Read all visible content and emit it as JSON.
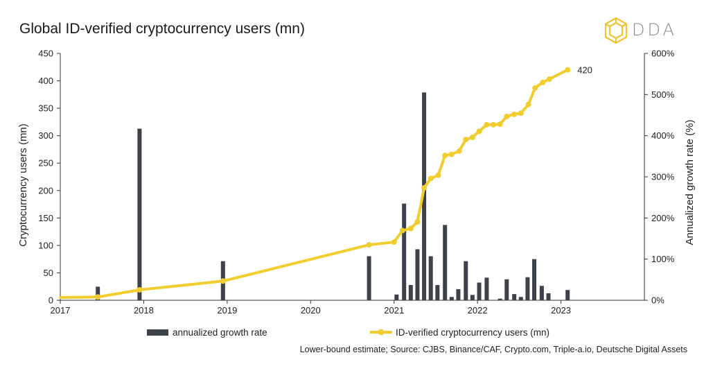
{
  "title": "Global ID-verified cryptocurrency users (mn)",
  "logo": {
    "text": "DDA",
    "icon": "dda-logo-icon"
  },
  "source": "Lower-bound estimate; Source: CJBS, Binance/CAF, Crypto.com, Triple-a.io, Deutsche Digital Assets",
  "colors": {
    "bars": "#3d4149",
    "line": "#f2cd2e",
    "logo": "#f2c230"
  },
  "chart_data": {
    "type": "bar+line",
    "x_axis": {
      "min": 2017.0,
      "max": 2024.0,
      "ticks": [
        "2017",
        "2018",
        "2019",
        "2020",
        "2021",
        "2022",
        "2023"
      ]
    },
    "y_left": {
      "label": "Cryptocurrency users (mn)",
      "min": 0,
      "max": 450,
      "ticks": [
        "0",
        "50",
        "100",
        "150",
        "200",
        "250",
        "300",
        "350",
        "400",
        "450"
      ]
    },
    "y_right": {
      "label": "Annualized growth rate (%)",
      "min": 0,
      "max": 600,
      "ticks": [
        "0%",
        "100%",
        "200%",
        "300%",
        "400%",
        "500%",
        "600%"
      ]
    },
    "legend": {
      "position": "bottom",
      "bar_label": "annualized growth rate",
      "line_label": "ID-verified cryptocurrency users (mn)"
    },
    "end_label": "420",
    "bar_series": {
      "name": "annualized growth rate",
      "axis": "right",
      "points": [
        {
          "x": 2017.45,
          "y": 33
        },
        {
          "x": 2017.95,
          "y": 417
        },
        {
          "x": 2018.95,
          "y": 95
        },
        {
          "x": 2020.7,
          "y": 107
        },
        {
          "x": 2021.03,
          "y": 14
        },
        {
          "x": 2021.12,
          "y": 235
        },
        {
          "x": 2021.2,
          "y": 37
        },
        {
          "x": 2021.28,
          "y": 124
        },
        {
          "x": 2021.36,
          "y": 505
        },
        {
          "x": 2021.44,
          "y": 107
        },
        {
          "x": 2021.52,
          "y": 37
        },
        {
          "x": 2021.61,
          "y": 183
        },
        {
          "x": 2021.69,
          "y": 8
        },
        {
          "x": 2021.77,
          "y": 27
        },
        {
          "x": 2021.86,
          "y": 95
        },
        {
          "x": 2021.94,
          "y": 13
        },
        {
          "x": 2022.02,
          "y": 43
        },
        {
          "x": 2022.11,
          "y": 55
        },
        {
          "x": 2022.27,
          "y": 4
        },
        {
          "x": 2022.35,
          "y": 51
        },
        {
          "x": 2022.44,
          "y": 15
        },
        {
          "x": 2022.52,
          "y": 8
        },
        {
          "x": 2022.6,
          "y": 56
        },
        {
          "x": 2022.68,
          "y": 100
        },
        {
          "x": 2022.77,
          "y": 35
        },
        {
          "x": 2022.85,
          "y": 17
        },
        {
          "x": 2023.08,
          "y": 25
        }
      ]
    },
    "line_series": {
      "name": "ID-verified cryptocurrency users (mn)",
      "axis": "left",
      "points": [
        {
          "x": 2017.0,
          "y": 5
        },
        {
          "x": 2017.45,
          "y": 6
        },
        {
          "x": 2017.95,
          "y": 19
        },
        {
          "x": 2018.95,
          "y": 35
        },
        {
          "x": 2020.7,
          "y": 101
        },
        {
          "x": 2021.0,
          "y": 106
        },
        {
          "x": 2021.1,
          "y": 127
        },
        {
          "x": 2021.2,
          "y": 131
        },
        {
          "x": 2021.28,
          "y": 143
        },
        {
          "x": 2021.36,
          "y": 205
        },
        {
          "x": 2021.44,
          "y": 222
        },
        {
          "x": 2021.53,
          "y": 228
        },
        {
          "x": 2021.61,
          "y": 264
        },
        {
          "x": 2021.69,
          "y": 266
        },
        {
          "x": 2021.78,
          "y": 272
        },
        {
          "x": 2021.86,
          "y": 293
        },
        {
          "x": 2021.94,
          "y": 297
        },
        {
          "x": 2022.02,
          "y": 308
        },
        {
          "x": 2022.11,
          "y": 320
        },
        {
          "x": 2022.19,
          "y": 320
        },
        {
          "x": 2022.27,
          "y": 321
        },
        {
          "x": 2022.35,
          "y": 335
        },
        {
          "x": 2022.44,
          "y": 339
        },
        {
          "x": 2022.52,
          "y": 341
        },
        {
          "x": 2022.61,
          "y": 357
        },
        {
          "x": 2022.69,
          "y": 387
        },
        {
          "x": 2022.78,
          "y": 397
        },
        {
          "x": 2022.86,
          "y": 403
        },
        {
          "x": 2023.08,
          "y": 420
        }
      ]
    }
  }
}
